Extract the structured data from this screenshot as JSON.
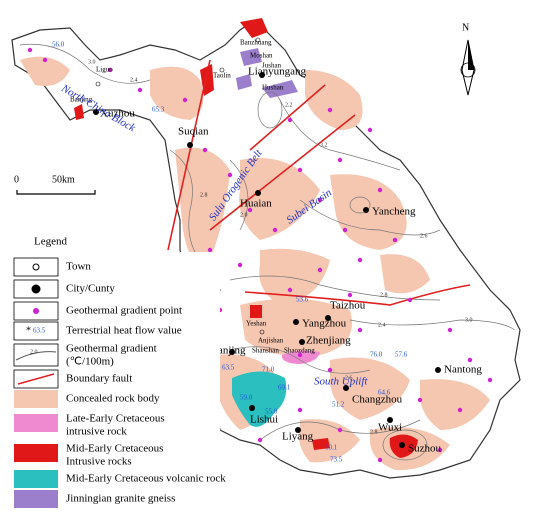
{
  "north": "N",
  "scale": {
    "zero": "0",
    "length": "50km"
  },
  "cities": [
    "Xuzhou",
    "Suqian",
    "Lianyungang",
    "Huaian",
    "Yancheng",
    "Taizhou",
    "Yangzhou",
    "Zhenjiang",
    "Nanjing",
    "Nantong",
    "Changzhou",
    "Lishui",
    "Liyang",
    "Wuxi",
    "Suzhou"
  ],
  "towns": [
    "Banzhuang",
    "Moshan",
    "Jushan",
    "Hushan",
    "Liguo",
    "Banjing",
    "Taolin",
    "Yeshan",
    "Anjishan",
    "Shanshan",
    "Shaozdang"
  ],
  "regions": [
    "North China Block",
    "Sulu Orogenic Belt",
    "Subei Basin",
    "South Uplift"
  ],
  "heat_flow": [
    "56.0",
    "65.3",
    "53.6",
    "63.5",
    "71.0",
    "59.0",
    "69.1",
    "76.0",
    "57.6",
    "64.6",
    "73.5",
    "55.0",
    "60.1",
    "51.2"
  ],
  "contour_labels": [
    "2.4",
    "2.8",
    "2.0",
    "3.2",
    "2.6",
    "2.8",
    "2.4",
    "3.0",
    "2.6",
    "2.2",
    "2.8",
    "3.0"
  ],
  "legend": {
    "title": "Legend",
    "items": [
      "Town",
      "City/Cunty",
      "Geothermal gradient point",
      "Terrestrial heat flow value",
      "Geothermal gradient",
      "(℃/100m)",
      "Boundary fault",
      "Concealed rock body",
      "Late-Early Cretaceous",
      "intrusive rock",
      "Mid-Early Cretaceous",
      "Intrusive rocks",
      "Mid-Early Cretaceous volcanic rock",
      "Jinningian granite gneiss"
    ],
    "symbol_labels": [
      "63.5",
      "2.0"
    ]
  }
}
